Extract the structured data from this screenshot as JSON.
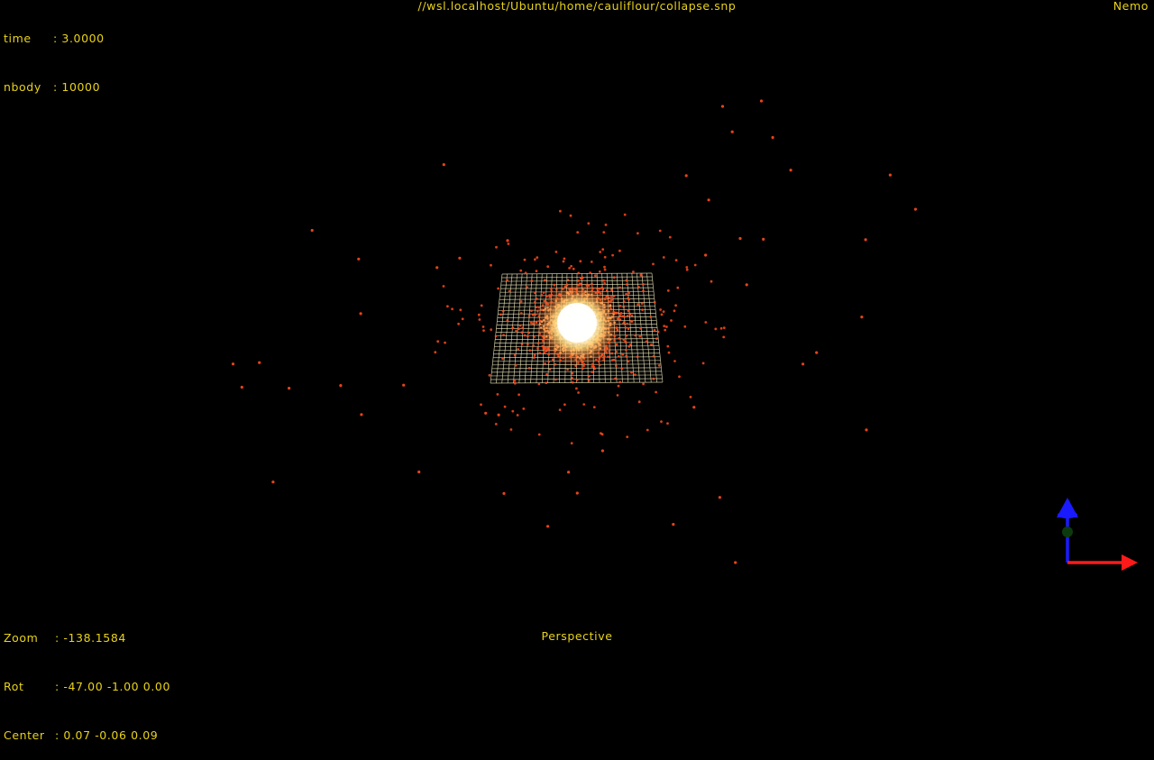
{
  "window": {
    "path": "//wsl.localhost/Ubuntu/home/cauliflour/collapse.snp",
    "app_name": "Nemo"
  },
  "info": {
    "time_label": "time",
    "time_sep": ":",
    "time_value": "3.0000",
    "nbody_label": "nbody",
    "nbody_sep": ":",
    "nbody_value": "10000"
  },
  "camera": {
    "zoom_label": "Zoom",
    "zoom_sep": ":",
    "zoom_value": "-138.1584",
    "rot_label": "Rot",
    "rot_sep": ":",
    "rot_value": "-47.00 -1.00 0.00",
    "center_label": "Center",
    "center_sep": ":",
    "center_value": "0.07 -0.06 0.09",
    "projection": "Perspective"
  },
  "colors": {
    "hud_text": "#e8d21a",
    "particle": "#ff4a1c",
    "core": "#fffbe8",
    "grid": "#e9e6b8",
    "axis_x": "#ff1a1a",
    "axis_y": "#1a1aff",
    "axis_z": "#1a6b1a"
  },
  "icons": {
    "axis_gizmo": "xyz-axes-icon"
  }
}
